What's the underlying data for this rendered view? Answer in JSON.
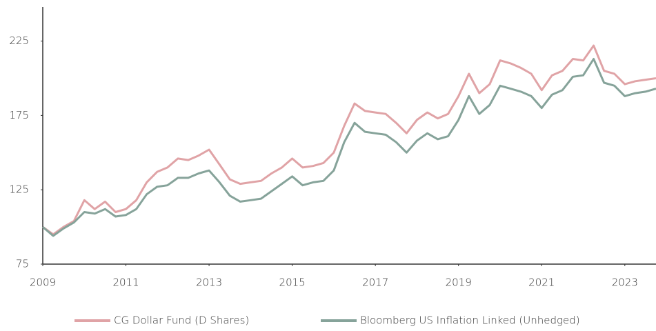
{
  "chart_data": {
    "type": "line",
    "x": [
      2009,
      2009.25,
      2009.5,
      2009.75,
      2010,
      2010.25,
      2010.5,
      2010.75,
      2011,
      2011.25,
      2011.5,
      2011.75,
      2012,
      2012.25,
      2012.5,
      2012.75,
      2013,
      2013.25,
      2013.5,
      2013.75,
      2014,
      2014.25,
      2014.5,
      2014.75,
      2015,
      2015.25,
      2015.5,
      2015.75,
      2016,
      2016.25,
      2016.5,
      2016.75,
      2017,
      2017.25,
      2017.5,
      2017.75,
      2018,
      2018.25,
      2018.5,
      2018.75,
      2019,
      2019.25,
      2019.5,
      2019.75,
      2020,
      2020.25,
      2020.5,
      2020.75,
      2021,
      2021.25,
      2021.5,
      2021.75,
      2022,
      2022.25,
      2022.5,
      2022.75,
      2023,
      2023.25,
      2023.5,
      2023.75
    ],
    "series": [
      {
        "name": "CG Dollar Fund (D Shares)",
        "color": "#e0a3a6",
        "values": [
          100,
          95,
          100,
          104,
          118,
          112,
          117,
          110,
          112,
          118,
          130,
          137,
          140,
          146,
          145,
          148,
          152,
          142,
          132,
          129,
          130,
          131,
          136,
          140,
          146,
          140,
          141,
          143,
          150,
          168,
          183,
          178,
          177,
          176,
          170,
          163,
          172,
          177,
          173,
          176,
          188,
          203,
          190,
          196,
          212,
          210,
          207,
          203,
          192,
          202,
          205,
          213,
          212,
          222,
          205,
          203,
          196,
          198,
          199,
          200
        ]
      },
      {
        "name": "Bloomberg US Inflation Linked (Unhedged)",
        "color": "#86a39a",
        "values": [
          100,
          94,
          99,
          103,
          110,
          109,
          112,
          107,
          108,
          112,
          122,
          127,
          128,
          133,
          133,
          136,
          138,
          130,
          121,
          117,
          118,
          119,
          124,
          129,
          134,
          128,
          130,
          131,
          138,
          157,
          170,
          164,
          163,
          162,
          157,
          150,
          158,
          163,
          159,
          161,
          172,
          188,
          176,
          182,
          195,
          193,
          191,
          188,
          180,
          189,
          192,
          201,
          202,
          213,
          197,
          195,
          188,
          190,
          191,
          193
        ]
      }
    ],
    "xlim": [
      2009,
      2023.75
    ],
    "xticks": [
      2009,
      2011,
      2013,
      2015,
      2017,
      2019,
      2021,
      2023
    ],
    "ylim": [
      75,
      248
    ],
    "yticks": [
      75,
      125,
      175,
      225
    ],
    "legend": "bottom"
  }
}
